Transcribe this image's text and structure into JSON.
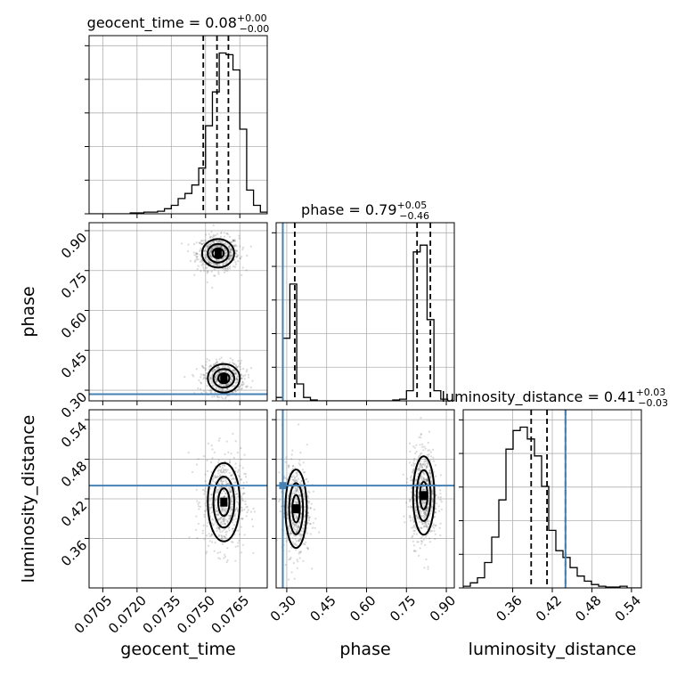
{
  "chart_data": {
    "type": "corner",
    "parameters": [
      {
        "name": "geocent_time",
        "label": "geocent_time",
        "range": [
          0.0699,
          0.0777
        ],
        "ticks": [
          0.0705,
          0.072,
          0.0735,
          0.075,
          0.0765
        ],
        "tick_labels": [
          "0.0705",
          "0.0720",
          "0.0735",
          "0.0750",
          "0.0765"
        ],
        "title_main": "geocent_time = 0.08",
        "title_sup": "+0.00",
        "title_sub": "−0.00",
        "quantiles": [
          0.0749,
          0.0755,
          0.076
        ],
        "truth": null,
        "hist_bins": [
          0.0699,
          0.0702,
          0.0705,
          0.0708,
          0.0711,
          0.0714,
          0.0717,
          0.072,
          0.0723,
          0.0726,
          0.0729,
          0.0732,
          0.0735,
          0.0738,
          0.0741,
          0.0744,
          0.0747,
          0.075,
          0.0753,
          0.0756,
          0.0759,
          0.0762,
          0.0765,
          0.0768,
          0.0771,
          0.0774,
          0.0777
        ],
        "hist_counts": [
          0,
          0,
          0,
          0,
          0,
          0,
          0.005,
          0.005,
          0.01,
          0.01,
          0.015,
          0.03,
          0.05,
          0.09,
          0.12,
          0.17,
          0.27,
          0.52,
          0.72,
          0.95,
          0.94,
          0.85,
          0.5,
          0.14,
          0.05,
          0.01
        ]
      },
      {
        "name": "phase",
        "label": "phase",
        "range": [
          0.26,
          0.93
        ],
        "ticks": [
          0.3,
          0.45,
          0.6,
          0.75,
          0.9
        ],
        "tick_labels": [
          "0.30",
          "0.45",
          "0.60",
          "0.75",
          "0.90"
        ],
        "title_main": "phase = 0.79",
        "title_sup": "+0.05",
        "title_sub": "−0.46",
        "quantiles": [
          0.33,
          0.79,
          0.84
        ],
        "truth": 0.285,
        "hist_bins": [
          0.26,
          0.2858,
          0.3116,
          0.3374,
          0.3632,
          0.389,
          0.4148,
          0.4406,
          0.4664,
          0.4922,
          0.518,
          0.5438,
          0.5696,
          0.5954,
          0.6212,
          0.647,
          0.6728,
          0.6986,
          0.7244,
          0.7502,
          0.776,
          0.8018,
          0.8276,
          0.8534,
          0.8792,
          0.905,
          0.93
        ],
        "hist_counts": [
          0.02,
          0.37,
          0.69,
          0.1,
          0.02,
          0.005,
          0,
          0,
          0,
          0,
          0,
          0,
          0,
          0,
          0,
          0,
          0,
          0.005,
          0.01,
          0.06,
          0.88,
          0.92,
          0.48,
          0.06,
          0.01,
          0
        ]
      },
      {
        "name": "luminosity_distance",
        "label": "luminosity_distance",
        "range": [
          0.285,
          0.555
        ],
        "ticks": [
          0.36,
          0.42,
          0.48,
          0.54
        ],
        "tick_labels": [
          "0.36",
          "0.42",
          "0.48",
          "0.54"
        ],
        "title_main": "luminosity_distance = 0.41",
        "title_sup": "+0.03",
        "title_sub": "−0.03",
        "quantiles": [
          0.388,
          0.412,
          0.44
        ],
        "truth": 0.44,
        "hist_bins": [
          0.285,
          0.2958,
          0.3066,
          0.3174,
          0.3282,
          0.339,
          0.3498,
          0.3606,
          0.3714,
          0.3822,
          0.393,
          0.4038,
          0.4146,
          0.4254,
          0.4362,
          0.447,
          0.4578,
          0.4686,
          0.4794,
          0.4902,
          0.501,
          0.5118,
          0.5226,
          0.5334,
          0.5442,
          0.555
        ],
        "hist_counts": [
          0.01,
          0.03,
          0.06,
          0.15,
          0.3,
          0.52,
          0.82,
          0.93,
          0.95,
          0.88,
          0.78,
          0.6,
          0.34,
          0.22,
          0.18,
          0.12,
          0.07,
          0.04,
          0.02,
          0.01,
          0.005,
          0.005,
          0.01,
          0,
          0
        ]
      }
    ],
    "modes": [
      {
        "x_param": "geocent_time",
        "y_param": "phase",
        "peaks": [
          {
            "x": 0.07555,
            "y": 0.815,
            "weight": 1.0
          },
          {
            "x": 0.0758,
            "y": 0.345,
            "weight": 0.8
          }
        ]
      },
      {
        "x_param": "geocent_time",
        "y_param": "luminosity_distance",
        "peaks": [
          {
            "x": 0.0758,
            "y": 0.415,
            "weight": 1.0
          }
        ]
      },
      {
        "x_param": "phase",
        "y_param": "luminosity_distance",
        "peaks": [
          {
            "x": 0.335,
            "y": 0.405,
            "weight": 0.8
          },
          {
            "x": 0.815,
            "y": 0.425,
            "weight": 1.0
          }
        ]
      }
    ],
    "grid": true
  }
}
